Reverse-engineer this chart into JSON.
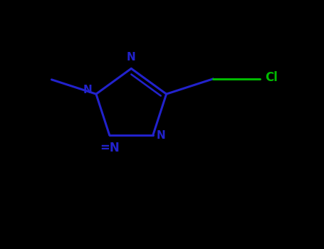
{
  "background_color": "#000000",
  "bond_color": "#2222cc",
  "cl_color": "#00bb00",
  "bond_width": 2.2,
  "figsize": [
    4.55,
    3.5
  ],
  "dpi": 100,
  "xlim": [
    -1.1,
    1.5
  ],
  "ylim": [
    -0.9,
    0.75
  ]
}
